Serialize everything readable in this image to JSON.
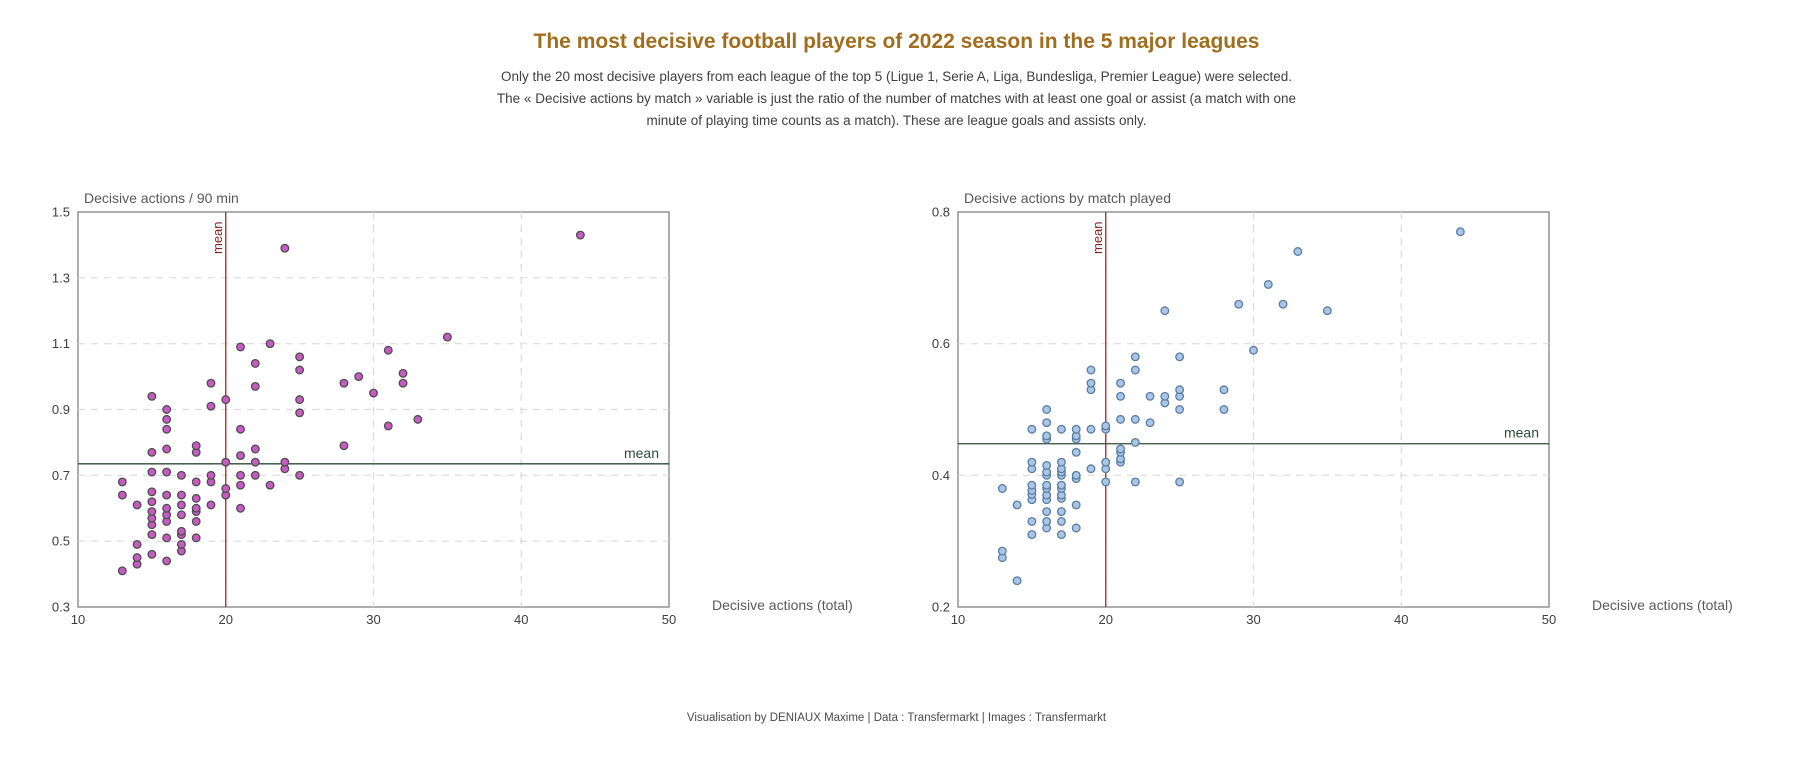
{
  "page": {
    "title": "The most decisive football players of 2022 season in the 5 major leagues",
    "subtitle_lines": [
      "Only the 20 most decisive players from each league of the top 5 (Ligue 1, Serie A, Liga, Bundesliga, Premier League) were selected.",
      "The « Decisive actions by match » variable is just the ratio of the number of matches with at least one goal or assist (a match with one",
      "minute of playing time counts as a match). These are league goals and assists only."
    ],
    "footer": "Visualisation by DENIAUX Maxime | Data : Transfermarkt | Images : Transfermarkt",
    "colors": {
      "title": "#a06e1e",
      "subtitle": "#3f3f3f",
      "footer": "#4a4a4a"
    }
  },
  "chart_data": [
    {
      "type": "scatter",
      "title": "Decisive actions / 90 min",
      "xlabel": "Decisive actions (total)",
      "xlim": [
        10,
        50
      ],
      "ylim": [
        0.3,
        1.5
      ],
      "xticks": [
        10,
        20,
        30,
        40,
        50
      ],
      "xtick_labels": [
        "10",
        "20",
        "30",
        "40",
        "50"
      ],
      "yticks": [
        0.3,
        0.5,
        0.7,
        0.9,
        1.1,
        1.3,
        1.5
      ],
      "ytick_labels": [
        "0.3",
        "0.5",
        "0.7",
        "0.9",
        "1.1",
        "1.3",
        "1.5"
      ],
      "x_gridlines": [
        20,
        30,
        40
      ],
      "y_gridlines": [
        0.5,
        0.7,
        0.9,
        1.1,
        1.3
      ],
      "grid": "dashed",
      "legend": "none",
      "mean_x": 20,
      "mean_x_label": "mean",
      "mean_y": 0.735,
      "mean_y_label": "mean",
      "point_fill": "#c95ac5",
      "point_stroke": "#4d4d4d",
      "colors": {
        "frame": "#8a8a8a",
        "grid": "#dcdcdc",
        "mean_x_line": "#b22222",
        "mean_x_label": "#8b1e1e",
        "mean_y_line": "#2e4b39",
        "mean_y_label": "#2e4b39",
        "tick": "#3d3d3d",
        "axis_title": "#595959"
      },
      "points": [
        [
          13,
          0.41
        ],
        [
          13,
          0.64
        ],
        [
          13,
          0.68
        ],
        [
          14,
          0.43
        ],
        [
          14,
          0.45
        ],
        [
          14,
          0.49
        ],
        [
          14,
          0.61
        ],
        [
          15,
          0.46
        ],
        [
          15,
          0.52
        ],
        [
          15,
          0.55
        ],
        [
          15,
          0.57
        ],
        [
          15,
          0.59
        ],
        [
          15,
          0.62
        ],
        [
          15,
          0.65
        ],
        [
          15,
          0.71
        ],
        [
          15,
          0.77
        ],
        [
          15,
          0.94
        ],
        [
          16,
          0.44
        ],
        [
          16,
          0.51
        ],
        [
          16,
          0.56
        ],
        [
          16,
          0.58
        ],
        [
          16,
          0.6
        ],
        [
          16,
          0.64
        ],
        [
          16,
          0.71
        ],
        [
          16,
          0.78
        ],
        [
          16,
          0.84
        ],
        [
          16,
          0.87
        ],
        [
          16,
          0.9
        ],
        [
          17,
          0.47
        ],
        [
          17,
          0.49
        ],
        [
          17,
          0.52
        ],
        [
          17,
          0.53
        ],
        [
          17,
          0.58
        ],
        [
          17,
          0.61
        ],
        [
          17,
          0.64
        ],
        [
          17,
          0.7
        ],
        [
          18,
          0.51
        ],
        [
          18,
          0.56
        ],
        [
          18,
          0.59
        ],
        [
          18,
          0.6
        ],
        [
          18,
          0.63
        ],
        [
          18,
          0.68
        ],
        [
          18,
          0.77
        ],
        [
          18,
          0.79
        ],
        [
          19,
          0.61
        ],
        [
          19,
          0.68
        ],
        [
          19,
          0.7
        ],
        [
          19,
          0.91
        ],
        [
          19,
          0.98
        ],
        [
          20,
          0.64
        ],
        [
          20,
          0.66
        ],
        [
          20,
          0.74
        ],
        [
          20,
          0.93
        ],
        [
          21,
          0.6
        ],
        [
          21,
          0.67
        ],
        [
          21,
          0.7
        ],
        [
          21,
          0.76
        ],
        [
          21,
          0.84
        ],
        [
          21,
          1.09
        ],
        [
          22,
          0.7
        ],
        [
          22,
          0.74
        ],
        [
          22,
          0.78
        ],
        [
          22,
          0.97
        ],
        [
          22,
          1.04
        ],
        [
          23,
          0.67
        ],
        [
          23,
          1.1
        ],
        [
          24,
          0.72
        ],
        [
          24,
          0.74
        ],
        [
          24,
          1.39
        ],
        [
          25,
          0.7
        ],
        [
          25,
          0.89
        ],
        [
          25,
          0.93
        ],
        [
          25,
          1.02
        ],
        [
          25,
          1.06
        ],
        [
          28,
          0.79
        ],
        [
          28,
          0.98
        ],
        [
          29,
          1.0
        ],
        [
          30,
          0.95
        ],
        [
          31,
          0.85
        ],
        [
          31,
          1.08
        ],
        [
          32,
          0.98
        ],
        [
          32,
          1.01
        ],
        [
          33,
          0.87
        ],
        [
          35,
          1.12
        ],
        [
          44,
          1.43
        ]
      ]
    },
    {
      "type": "scatter",
      "title": "Decisive actions by match played",
      "xlabel": "Decisive actions (total)",
      "xlim": [
        10,
        50
      ],
      "ylim": [
        0.2,
        0.8
      ],
      "xticks": [
        10,
        20,
        30,
        40,
        50
      ],
      "xtick_labels": [
        "10",
        "20",
        "30",
        "40",
        "50"
      ],
      "yticks": [
        0.2,
        0.4,
        0.6,
        0.8
      ],
      "ytick_labels": [
        "0.2",
        "0.4",
        "0.6",
        "0.8"
      ],
      "x_gridlines": [
        20,
        30,
        40
      ],
      "y_gridlines": [
        0.4,
        0.6
      ],
      "grid": "dashed",
      "legend": "none",
      "mean_x": 20,
      "mean_x_label": "mean",
      "mean_y": 0.448,
      "mean_y_label": "mean",
      "point_fill": "#a7c6e8",
      "point_stroke": "#5b7da1",
      "colors": {
        "frame": "#8a8a8a",
        "grid": "#dcdcdc",
        "mean_x_line": "#b22222",
        "mean_x_label": "#8b1e1e",
        "mean_y_line": "#2e4b39",
        "mean_y_label": "#2e4b39",
        "tick": "#3d3d3d",
        "axis_title": "#595959"
      },
      "points": [
        [
          13,
          0.275
        ],
        [
          13,
          0.285
        ],
        [
          13,
          0.38
        ],
        [
          14,
          0.24
        ],
        [
          14,
          0.355
        ],
        [
          15,
          0.31
        ],
        [
          15,
          0.33
        ],
        [
          15,
          0.363
        ],
        [
          15,
          0.371
        ],
        [
          15,
          0.377
        ],
        [
          15,
          0.385
        ],
        [
          15,
          0.41
        ],
        [
          15,
          0.42
        ],
        [
          15,
          0.47
        ],
        [
          16,
          0.32
        ],
        [
          16,
          0.33
        ],
        [
          16,
          0.345
        ],
        [
          16,
          0.363
        ],
        [
          16,
          0.37
        ],
        [
          16,
          0.38
        ],
        [
          16,
          0.385
        ],
        [
          16,
          0.4
        ],
        [
          16,
          0.405
        ],
        [
          16,
          0.415
        ],
        [
          16,
          0.455
        ],
        [
          16,
          0.46
        ],
        [
          16,
          0.48
        ],
        [
          16,
          0.5
        ],
        [
          17,
          0.31
        ],
        [
          17,
          0.33
        ],
        [
          17,
          0.345
        ],
        [
          17,
          0.365
        ],
        [
          17,
          0.37
        ],
        [
          17,
          0.38
        ],
        [
          17,
          0.385
        ],
        [
          17,
          0.4
        ],
        [
          17,
          0.405
        ],
        [
          17,
          0.41
        ],
        [
          17,
          0.42
        ],
        [
          17,
          0.47
        ],
        [
          18,
          0.32
        ],
        [
          18,
          0.355
        ],
        [
          18,
          0.395
        ],
        [
          18,
          0.4
        ],
        [
          18,
          0.435
        ],
        [
          18,
          0.455
        ],
        [
          18,
          0.46
        ],
        [
          18,
          0.47
        ],
        [
          19,
          0.41
        ],
        [
          19,
          0.47
        ],
        [
          19,
          0.53
        ],
        [
          19,
          0.54
        ],
        [
          19,
          0.56
        ],
        [
          20,
          0.39
        ],
        [
          20,
          0.41
        ],
        [
          20,
          0.42
        ],
        [
          20,
          0.47
        ],
        [
          20,
          0.475
        ],
        [
          21,
          0.42
        ],
        [
          21,
          0.425
        ],
        [
          21,
          0.435
        ],
        [
          21,
          0.44
        ],
        [
          21,
          0.485
        ],
        [
          21,
          0.52
        ],
        [
          21,
          0.54
        ],
        [
          22,
          0.39
        ],
        [
          22,
          0.45
        ],
        [
          22,
          0.485
        ],
        [
          22,
          0.56
        ],
        [
          22,
          0.58
        ],
        [
          23,
          0.48
        ],
        [
          23,
          0.52
        ],
        [
          24,
          0.51
        ],
        [
          24,
          0.52
        ],
        [
          24,
          0.65
        ],
        [
          25,
          0.39
        ],
        [
          25,
          0.5
        ],
        [
          25,
          0.52
        ],
        [
          25,
          0.53
        ],
        [
          25,
          0.58
        ],
        [
          28,
          0.5
        ],
        [
          28,
          0.53
        ],
        [
          29,
          0.66
        ],
        [
          30,
          0.59
        ],
        [
          31,
          0.69
        ],
        [
          32,
          0.66
        ],
        [
          33,
          0.74
        ],
        [
          35,
          0.65
        ],
        [
          44,
          0.77
        ]
      ]
    }
  ]
}
